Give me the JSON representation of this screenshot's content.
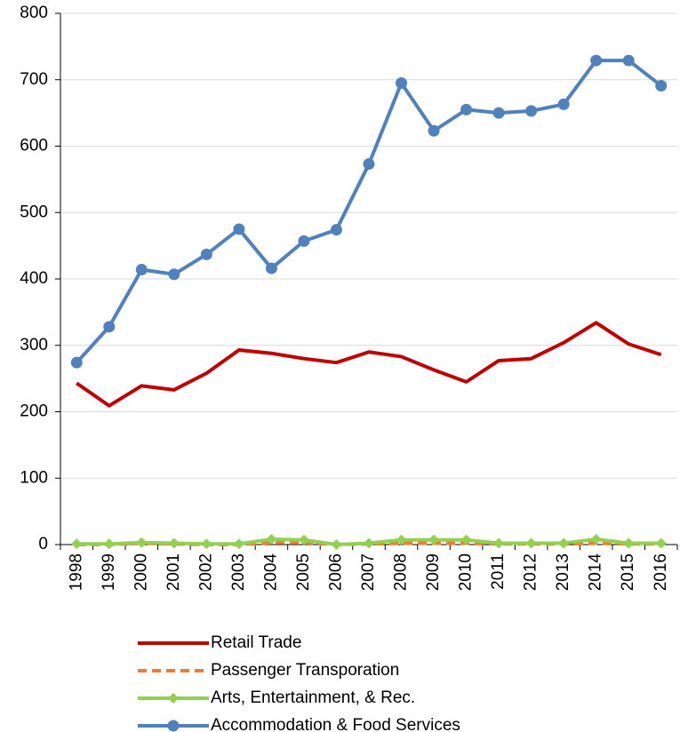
{
  "chart_data": {
    "type": "line",
    "categories": [
      "1998",
      "1999",
      "2000",
      "2001",
      "2002",
      "2003",
      "2004",
      "2005",
      "2006",
      "2007",
      "2008",
      "2009",
      "2010",
      "2011",
      "2012",
      "2013",
      "2014",
      "2015",
      "2016"
    ],
    "series": [
      {
        "name": "Retail Trade",
        "color": "#c00000",
        "style": "solid",
        "marker": "none",
        "values": [
          243,
          209,
          239,
          233,
          258,
          293,
          288,
          280,
          274,
          290,
          283,
          263,
          245,
          277,
          280,
          304,
          334,
          302,
          286
        ]
      },
      {
        "name": "Passenger Transporation",
        "color": "#ed7d31",
        "style": "dashed",
        "marker": "none",
        "values": [
          0,
          0,
          2,
          1,
          0,
          0,
          3,
          3,
          0,
          1,
          2,
          2,
          2,
          1,
          1,
          1,
          2,
          1,
          1
        ]
      },
      {
        "name": "Arts, Entertainment, & Rec.",
        "color": "#92d050",
        "style": "solid",
        "marker": "diamond",
        "values": [
          1,
          1,
          3,
          2,
          1,
          1,
          8,
          7,
          0,
          2,
          7,
          7,
          7,
          2,
          2,
          2,
          8,
          2,
          2
        ]
      },
      {
        "name": "Accommodation & Food Services",
        "color": "#4f81bd",
        "style": "solid",
        "marker": "circle",
        "values": [
          274,
          328,
          414,
          407,
          437,
          475,
          416,
          457,
          474,
          573,
          695,
          623,
          655,
          650,
          653,
          663,
          729,
          729,
          691
        ]
      }
    ],
    "ylim": [
      0,
      800
    ],
    "yticks": [
      0,
      100,
      200,
      300,
      400,
      500,
      600,
      700,
      800
    ],
    "grid": true,
    "legend": "bottom"
  }
}
